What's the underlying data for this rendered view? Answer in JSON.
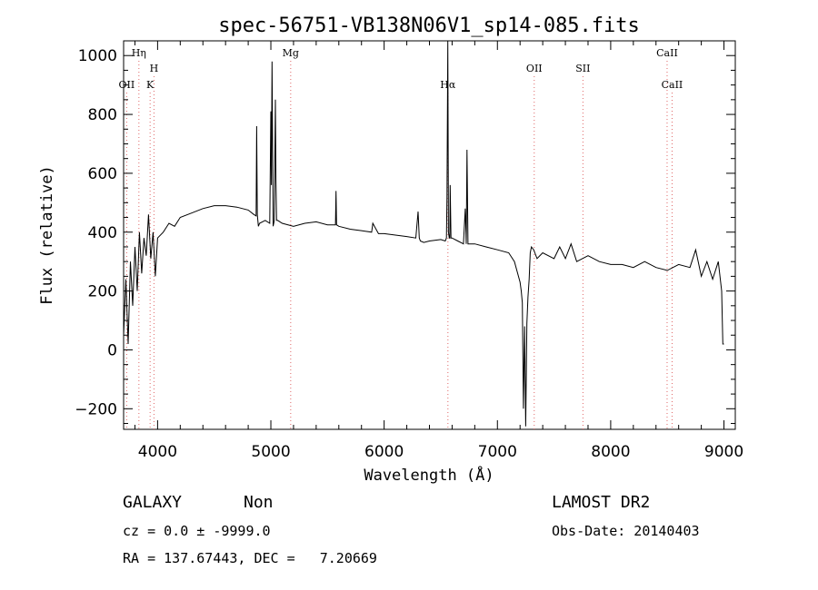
{
  "chart_data": {
    "type": "line",
    "title": "spec-56751-VB138N06V1_sp14-085.fits",
    "xlabel": "Wavelength (Å)",
    "ylabel": "Flux (relative)",
    "xlim": [
      3700,
      9100
    ],
    "ylim": [
      -270,
      1050
    ],
    "x_ticks": [
      4000,
      5000,
      6000,
      7000,
      8000,
      9000
    ],
    "y_ticks": [
      -200,
      0,
      200,
      400,
      600,
      800,
      1000
    ],
    "grid": false,
    "line_color": "#000000",
    "marker_color": "#e06666",
    "line_markers": [
      {
        "label": "OII",
        "wavelength": 3727,
        "level": 2
      },
      {
        "label": "Hη",
        "wavelength": 3835,
        "level": 0
      },
      {
        "label": "H",
        "wavelength": 3968,
        "level": 1
      },
      {
        "label": "K",
        "wavelength": 3934,
        "level": 2
      },
      {
        "label": "Mg",
        "wavelength": 5175,
        "level": 0
      },
      {
        "label": "Hα",
        "wavelength": 6563,
        "level": 2
      },
      {
        "label": "OII",
        "wavelength": 7325,
        "level": 1
      },
      {
        "label": "SII",
        "wavelength": 7755,
        "level": 1
      },
      {
        "label": "CaII",
        "wavelength": 8498,
        "level": 0
      },
      {
        "label": "CaII",
        "wavelength": 8542,
        "level": 2
      }
    ],
    "series": [
      {
        "x": [
          3700,
          3720,
          3740,
          3760,
          3780,
          3800,
          3820,
          3840,
          3860,
          3880,
          3900,
          3920,
          3940,
          3960,
          3980,
          4000,
          4050,
          4100,
          4150,
          4200,
          4300,
          4400,
          4500,
          4600,
          4700,
          4800,
          4850,
          4870,
          4875,
          4880,
          4890,
          4900,
          4950,
          4990,
          5000,
          5005,
          5010,
          5020,
          5030,
          5040,
          5045,
          5050,
          5060,
          5100,
          5200,
          5300,
          5400,
          5500,
          5570,
          5575,
          5580,
          5600,
          5700,
          5800,
          5890,
          5900,
          5950,
          6000,
          6100,
          6200,
          6280,
          6300,
          6310,
          6320,
          6350,
          6400,
          6500,
          6540,
          6550,
          6555,
          6562,
          6568,
          6575,
          6580,
          6583,
          6590,
          6600,
          6650,
          6700,
          6716,
          6725,
          6731,
          6740,
          6750,
          6800,
          6900,
          7000,
          7100,
          7150,
          7200,
          7210,
          7220,
          7230,
          7240,
          7250,
          7260,
          7270,
          7280,
          7290,
          7300,
          7320,
          7350,
          7400,
          7500,
          7550,
          7600,
          7650,
          7700,
          7800,
          7900,
          8000,
          8100,
          8200,
          8300,
          8400,
          8500,
          8600,
          8700,
          8750,
          8800,
          8850,
          8900,
          8950,
          8980,
          8990,
          9000
        ],
        "y": [
          50,
          240,
          20,
          300,
          150,
          350,
          200,
          400,
          260,
          380,
          320,
          460,
          310,
          400,
          250,
          380,
          400,
          430,
          420,
          450,
          465,
          480,
          490,
          490,
          485,
          475,
          460,
          455,
          760,
          460,
          420,
          430,
          440,
          430,
          810,
          560,
          980,
          420,
          440,
          850,
          580,
          440,
          440,
          430,
          420,
          430,
          435,
          425,
          425,
          540,
          425,
          420,
          410,
          405,
          400,
          430,
          395,
          395,
          390,
          385,
          380,
          470,
          380,
          370,
          365,
          370,
          375,
          370,
          380,
          520,
          1050,
          400,
          380,
          380,
          560,
          380,
          380,
          370,
          360,
          480,
          360,
          680,
          360,
          360,
          360,
          350,
          340,
          330,
          300,
          230,
          200,
          160,
          -200,
          80,
          -260,
          90,
          180,
          240,
          330,
          350,
          340,
          310,
          330,
          310,
          350,
          310,
          360,
          300,
          320,
          300,
          290,
          290,
          280,
          300,
          280,
          270,
          290,
          280,
          340,
          250,
          300,
          240,
          300,
          200,
          20,
          20
        ]
      }
    ],
    "info": {
      "class": "GALAXY",
      "subclass": "Non",
      "survey": "LAMOST DR2",
      "cz": "cz = 0.0 ± -9999.0",
      "obs_date": "Obs-Date: 20140403",
      "coords": "RA = 137.67443, DEC =   7.20669"
    }
  }
}
